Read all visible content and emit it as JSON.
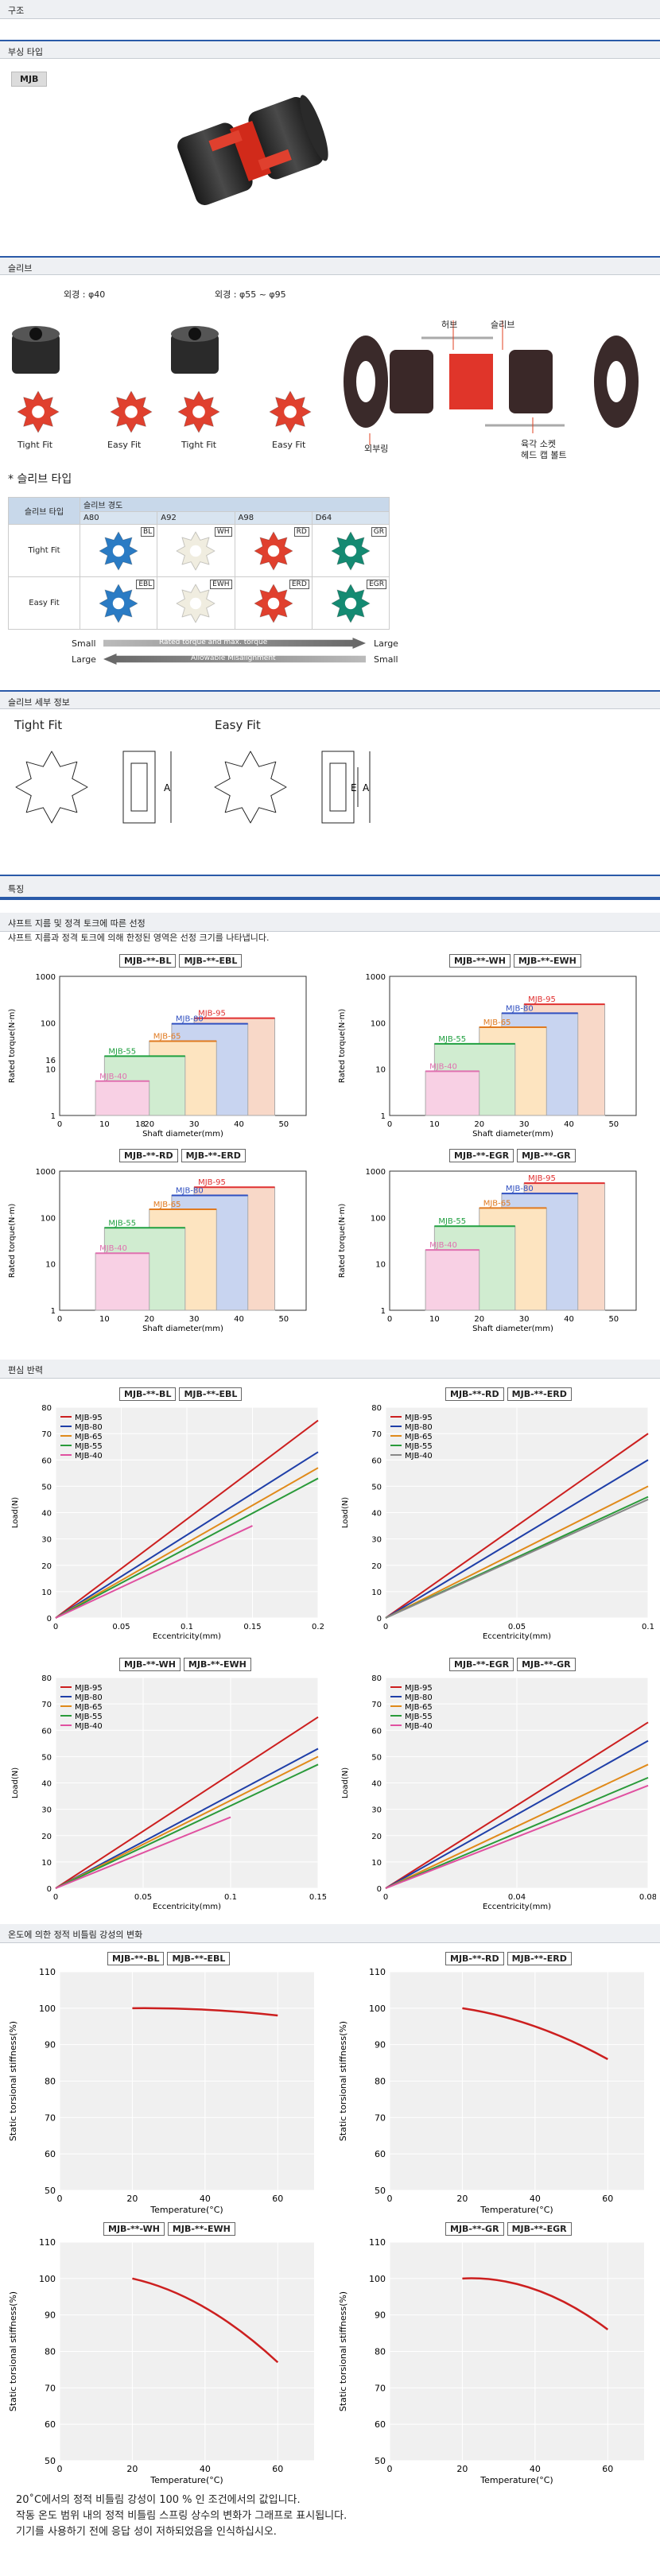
{
  "sections": {
    "structure": "구조",
    "parts_type": "부싱 타입",
    "sleeve": "슬리브",
    "sleeve_detail": "슬리브 세부 정보",
    "features": "특징",
    "selection": "샤프트 지름 및 정격 토크에 따른 선정",
    "deflection": "편심 반력",
    "temperature": "온도에 의한 정적 비틀림 강성의 변화"
  },
  "product_tag": "MJB",
  "sleeve_images": {
    "od1": "외경 : φ40",
    "od2": "외경 : φ55 ~ φ95",
    "labels": [
      "Tight Fit",
      "Easy Fit",
      "Tight Fit",
      "Easy Fit"
    ],
    "exploded": {
      "hub": "허브",
      "sleeve": "슬리브",
      "outer": "외부링",
      "bolt": "육각 소켓\n헤드 캡 볼트"
    }
  },
  "sleeve_type": {
    "heading": "* 슬리브 타입",
    "col_type": "슬리브 타입",
    "col_hardness": "슬리브 경도",
    "hardness": [
      "A80",
      "A92",
      "A98",
      "D64"
    ],
    "rows": [
      {
        "name": "Tight Fit",
        "codes": [
          "BL",
          "WH",
          "RD",
          "GR"
        ]
      },
      {
        "name": "Easy Fit",
        "codes": [
          "EBL",
          "EWH",
          "ERD",
          "EGR"
        ]
      }
    ],
    "colors": [
      "#2a7bc4",
      "#f0ede0",
      "#e0402e",
      "#148a72"
    ],
    "arrow1": {
      "left": "Small",
      "mid": "Rated torque and max. torque",
      "right": "Large"
    },
    "arrow2": {
      "left": "Large",
      "mid": "Allowable Misalignment",
      "right": "Small"
    }
  },
  "sleeve_detail": {
    "tight": "Tight Fit",
    "easy": "Easy Fit",
    "a": "A",
    "e": "E"
  },
  "selection_desc": "샤프트 지름과 정격 토크에 의해 한정된 영역은 선정 크기를 나타냅니다.",
  "selection_charts": [
    {
      "tags": [
        "MJB-**-BL",
        "MJB-**-EBL"
      ],
      "xlabel": "Shaft diameter(mm)",
      "ylabel": "Rated torque(N·m)",
      "xticks": [
        "0",
        "10",
        "18",
        "20",
        "30",
        "40",
        "50"
      ],
      "yticks": [
        "1",
        "10",
        "16",
        "100",
        "1000"
      ],
      "series": [
        {
          "name": "MJB-95",
          "color": "#e03030",
          "xmax": 48,
          "t": 125
        },
        {
          "name": "MJB-80",
          "color": "#3050c0",
          "xmax": 42,
          "t": 95
        },
        {
          "name": "MJB-65",
          "color": "#e07a20",
          "xmax": 35,
          "t": 40
        },
        {
          "name": "MJB-55",
          "color": "#20a040",
          "xmax": 28,
          "t": 19
        },
        {
          "name": "MJB-40",
          "color": "#e070b0",
          "xmax": 20,
          "t": 5.5
        }
      ]
    },
    {
      "tags": [
        "MJB-**-WH",
        "MJB-**-EWH"
      ],
      "xlabel": "Shaft diameter(mm)",
      "ylabel": "Rated torque(N·m)",
      "xticks": [
        "0",
        "10",
        "20",
        "30",
        "40",
        "50"
      ],
      "yticks": [
        "1",
        "10",
        "100",
        "1000"
      ],
      "series": [
        {
          "name": "MJB-95",
          "color": "#e03030",
          "xmax": 48,
          "t": 250
        },
        {
          "name": "MJB-80",
          "color": "#3050c0",
          "xmax": 42,
          "t": 160
        },
        {
          "name": "MJB-65",
          "color": "#e07a20",
          "xmax": 35,
          "t": 80
        },
        {
          "name": "MJB-55",
          "color": "#20a040",
          "xmax": 28,
          "t": 35
        },
        {
          "name": "MJB-40",
          "color": "#e070b0",
          "xmax": 20,
          "t": 9
        }
      ]
    },
    {
      "tags": [
        "MJB-**-RD",
        "MJB-**-ERD"
      ],
      "xlabel": "Shaft diameter(mm)",
      "ylabel": "Rated torque(N·m)",
      "xticks": [
        "0",
        "10",
        "20",
        "30",
        "40",
        "50"
      ],
      "yticks": [
        "1",
        "10",
        "100",
        "1000"
      ],
      "series": [
        {
          "name": "MJB-95",
          "color": "#e03030",
          "xmax": 48,
          "t": 450
        },
        {
          "name": "MJB-80",
          "color": "#3050c0",
          "xmax": 42,
          "t": 300
        },
        {
          "name": "MJB-65",
          "color": "#e07a20",
          "xmax": 35,
          "t": 150
        },
        {
          "name": "MJB-55",
          "color": "#20a040",
          "xmax": 28,
          "t": 60
        },
        {
          "name": "MJB-40",
          "color": "#e070b0",
          "xmax": 20,
          "t": 17
        }
      ]
    },
    {
      "tags": [
        "MJB-**-EGR",
        "MJB-**-GR"
      ],
      "xlabel": "Shaft diameter(mm)",
      "ylabel": "Rated torque(N·m)",
      "xticks": [
        "0",
        "10",
        "20",
        "30",
        "40",
        "50"
      ],
      "yticks": [
        "1",
        "10",
        "100",
        "1000"
      ],
      "series": [
        {
          "name": "MJB-95",
          "color": "#e03030",
          "xmax": 48,
          "t": 550
        },
        {
          "name": "MJB-80",
          "color": "#3050c0",
          "xmax": 42,
          "t": 330
        },
        {
          "name": "MJB-65",
          "color": "#e07a20",
          "xmax": 35,
          "t": 160
        },
        {
          "name": "MJB-55",
          "color": "#20a040",
          "xmax": 28,
          "t": 65
        },
        {
          "name": "MJB-40",
          "color": "#e070b0",
          "xmax": 20,
          "t": 20
        }
      ]
    }
  ],
  "deflection_charts": [
    {
      "tags": [
        "MJB-**-BL",
        "MJB-**-EBL"
      ],
      "xlabel": "Eccentricity(mm)",
      "ylabel": "Load(N)",
      "xmax": 0.2,
      "xticks": [
        "0",
        "0.05",
        "0.1",
        "0.15",
        "0.2"
      ],
      "yticks": [
        "0",
        "10",
        "20",
        "30",
        "40",
        "50",
        "60",
        "70",
        "80"
      ],
      "series": [
        {
          "name": "MJB-95",
          "color": "#cc1f1f",
          "x": 0.2,
          "y": 75
        },
        {
          "name": "MJB-80",
          "color": "#1f3fa8",
          "x": 0.2,
          "y": 63
        },
        {
          "name": "MJB-65",
          "color": "#e08a1a",
          "x": 0.2,
          "y": 57
        },
        {
          "name": "MJB-55",
          "color": "#2a9a3a",
          "x": 0.2,
          "y": 53
        },
        {
          "name": "MJB-40",
          "color": "#e050a0",
          "x": 0.15,
          "y": 35
        }
      ]
    },
    {
      "tags": [
        "MJB-**-RD",
        "MJB-**-ERD"
      ],
      "xlabel": "Eccentricity(mm)",
      "ylabel": "Load(N)",
      "xmax": 0.1,
      "xticks": [
        "0",
        "0.05",
        "0.1"
      ],
      "yticks": [
        "0",
        "10",
        "20",
        "30",
        "40",
        "50",
        "60",
        "70",
        "80"
      ],
      "series": [
        {
          "name": "MJB-95",
          "color": "#cc1f1f",
          "x": 0.1,
          "y": 70
        },
        {
          "name": "MJB-80",
          "color": "#1f3fa8",
          "x": 0.1,
          "y": 60
        },
        {
          "name": "MJB-65",
          "color": "#e08a1a",
          "x": 0.1,
          "y": 50
        },
        {
          "name": "MJB-55",
          "color": "#2a9a3a",
          "x": 0.1,
          "y": 46
        },
        {
          "name": "MJB-40",
          "color": "#888888",
          "x": 0.1,
          "y": 45
        }
      ]
    },
    {
      "tags": [
        "MJB-**-WH",
        "MJB-**-EWH"
      ],
      "xlabel": "Eccentricity(mm)",
      "ylabel": "Load(N)",
      "xmax": 0.15,
      "xticks": [
        "0",
        "0.05",
        "0.1",
        "0.15"
      ],
      "yticks": [
        "0",
        "10",
        "20",
        "30",
        "40",
        "50",
        "60",
        "70",
        "80"
      ],
      "series": [
        {
          "name": "MJB-95",
          "color": "#cc1f1f",
          "x": 0.15,
          "y": 65
        },
        {
          "name": "MJB-80",
          "color": "#1f3fa8",
          "x": 0.15,
          "y": 53
        },
        {
          "name": "MJB-65",
          "color": "#e08a1a",
          "x": 0.15,
          "y": 50
        },
        {
          "name": "MJB-55",
          "color": "#2a9a3a",
          "x": 0.15,
          "y": 47
        },
        {
          "name": "MJB-40",
          "color": "#e050a0",
          "x": 0.1,
          "y": 27
        }
      ]
    },
    {
      "tags": [
        "MJB-**-EGR",
        "MJB-**-GR"
      ],
      "xlabel": "Eccentricity(mm)",
      "ylabel": "Load(N)",
      "xmax": 0.08,
      "xticks": [
        "0",
        "0.04",
        "0.08"
      ],
      "yticks": [
        "0",
        "10",
        "20",
        "30",
        "40",
        "50",
        "60",
        "70",
        "80"
      ],
      "series": [
        {
          "name": "MJB-95",
          "color": "#cc1f1f",
          "x": 0.08,
          "y": 63
        },
        {
          "name": "MJB-80",
          "color": "#1f3fa8",
          "x": 0.08,
          "y": 56
        },
        {
          "name": "MJB-65",
          "color": "#e08a1a",
          "x": 0.08,
          "y": 47
        },
        {
          "name": "MJB-55",
          "color": "#2a9a3a",
          "x": 0.08,
          "y": 42
        },
        {
          "name": "MJB-40",
          "color": "#e050a0",
          "x": 0.08,
          "y": 39
        }
      ]
    }
  ],
  "temp_charts": [
    {
      "tags": [
        "MJB-**-BL",
        "MJB-**-EBL"
      ],
      "xlabel": "Temperature(°C)",
      "ylabel": "Static torsional stiffness(%)",
      "xticks": [
        "0",
        "20",
        "40",
        "60"
      ],
      "yticks": [
        "50",
        "60",
        "70",
        "80",
        "90",
        "100",
        "110"
      ],
      "points": [
        [
          20,
          100
        ],
        [
          40,
          99.6
        ],
        [
          60,
          98
        ]
      ]
    },
    {
      "tags": [
        "MJB-**-RD",
        "MJB-**-ERD"
      ],
      "xlabel": "Temperature(°C)",
      "ylabel": "Static torsional stiffness(%)",
      "xticks": [
        "0",
        "20",
        "40",
        "60"
      ],
      "yticks": [
        "50",
        "60",
        "70",
        "80",
        "90",
        "100",
        "110"
      ],
      "points": [
        [
          20,
          100
        ],
        [
          40,
          95
        ],
        [
          60,
          86
        ]
      ]
    },
    {
      "tags": [
        "MJB-**-WH",
        "MJB-**-EWH"
      ],
      "xlabel": "Temperature(°C)",
      "ylabel": "Static torsional stiffness(%)",
      "xticks": [
        "0",
        "20",
        "40",
        "60"
      ],
      "yticks": [
        "50",
        "60",
        "70",
        "80",
        "90",
        "100",
        "110"
      ],
      "points": [
        [
          20,
          100
        ],
        [
          40,
          92
        ],
        [
          60,
          77
        ]
      ]
    },
    {
      "tags": [
        "MJB-**-GR",
        "MJB-**-EGR"
      ],
      "xlabel": "Temperature(°C)",
      "ylabel": "Static torsional stiffness(%)",
      "xticks": [
        "0",
        "20",
        "40",
        "60"
      ],
      "yticks": [
        "50",
        "60",
        "70",
        "80",
        "90",
        "100",
        "110"
      ],
      "points": [
        [
          20,
          100
        ],
        [
          40,
          97
        ],
        [
          60,
          86
        ]
      ]
    }
  ],
  "footnote": [
    "20˚C에서의 정적 비틀림 강성이 100 % 인 조건에서의 값입니다.",
    "작동 온도 범위 내의 정적 비틀림 스프링 상수의 변화가 그래프로 표시됩니다.",
    "기기를 사용하기 전에 응답 성이 저하되었음을 인식하십시오."
  ]
}
